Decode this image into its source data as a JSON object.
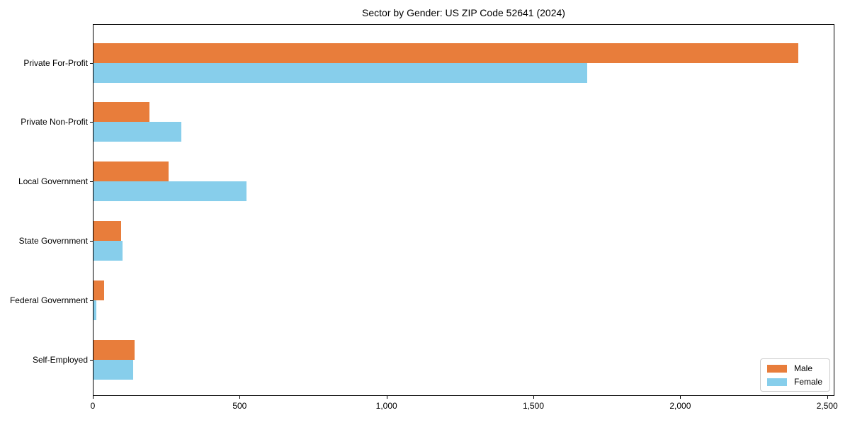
{
  "chart_data": {
    "type": "bar",
    "orientation": "horizontal",
    "title": "Sector by Gender: US ZIP Code 52641 (2024)",
    "categories": [
      "Private For-Profit",
      "Private Non-Profit",
      "Local Government",
      "State Government",
      "Federal Government",
      "Self-Employed"
    ],
    "series": [
      {
        "name": "Male",
        "color": "#e87d3b",
        "values": [
          2400,
          190,
          255,
          95,
          35,
          140
        ]
      },
      {
        "name": "Female",
        "color": "#87ceeb",
        "values": [
          1680,
          300,
          520,
          100,
          10,
          135
        ]
      }
    ],
    "xlabel": "",
    "ylabel": "",
    "xlim": [
      0,
      2520
    ],
    "x_ticks": [
      0,
      500,
      1000,
      1500,
      2000,
      2500
    ],
    "x_tick_labels": [
      "0",
      "500",
      "1,000",
      "1,500",
      "2,000",
      "2,500"
    ],
    "grid": false,
    "legend_position": "lower right",
    "axis_color": "#000000",
    "background_color": "#ffffff"
  }
}
